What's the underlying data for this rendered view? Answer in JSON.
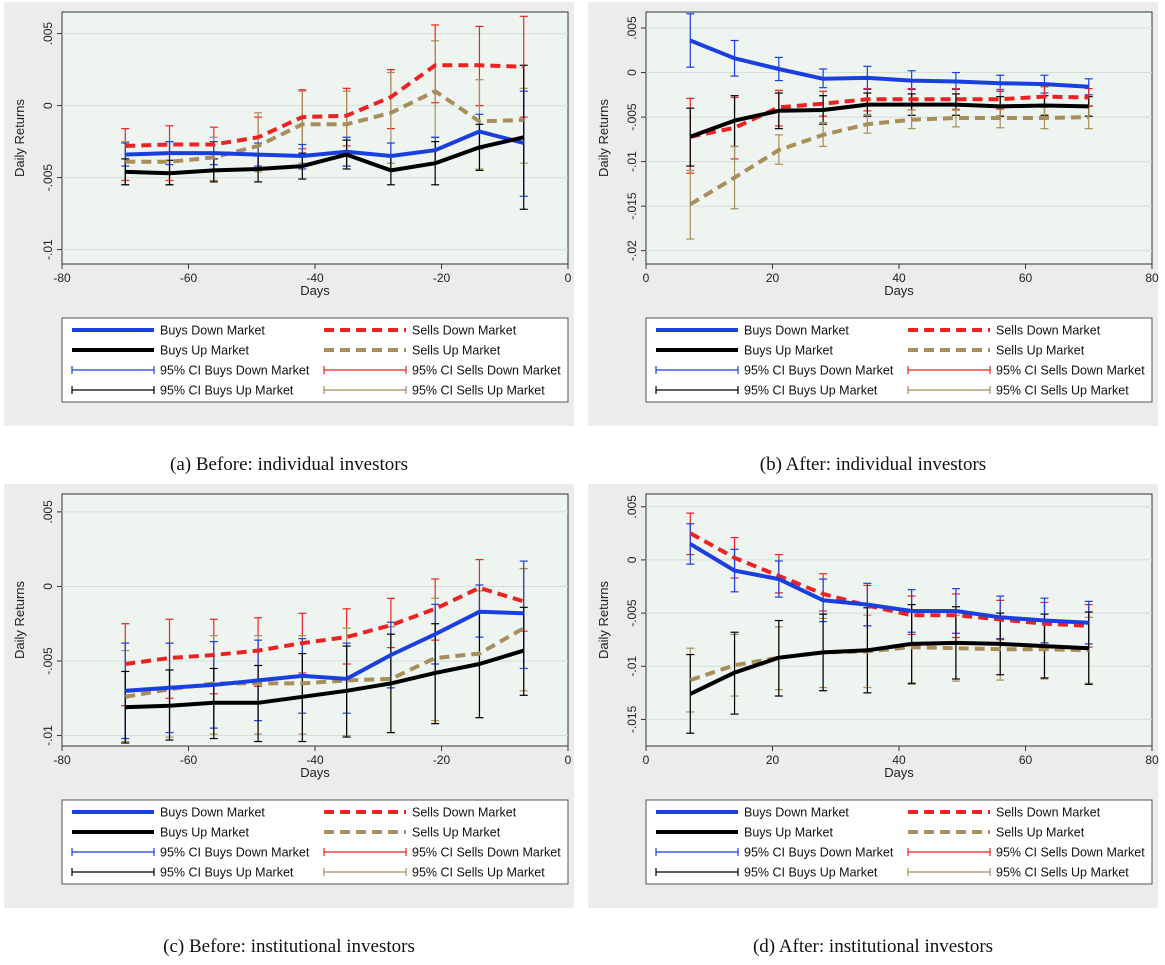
{
  "chart_data": [
    {
      "type": "line",
      "caption": "(a) Before: individual investors",
      "xlabel": "Days",
      "ylabel": "Daily Returns",
      "xlim": [
        -80,
        0
      ],
      "ylim": [
        -0.011,
        0.0065
      ],
      "xticks": [
        -80,
        -60,
        -40,
        -20,
        0
      ],
      "xtick_labels": [
        "-80",
        "-60",
        "-40",
        "-20",
        "0"
      ],
      "yticks": [
        0.005,
        0,
        -0.005,
        -0.01
      ],
      "ytick_labels": [
        ".005",
        "0",
        "-.005",
        "-.01"
      ],
      "x": [
        -70,
        -63,
        -56,
        -49,
        -42,
        -35,
        -28,
        -21,
        -14,
        -7
      ],
      "series": [
        {
          "name": "Sells Down Market",
          "color": "#ee2222",
          "dash": "10 6",
          "width": 4,
          "values": [
            -0.0028,
            -0.0027,
            -0.0027,
            -0.0022,
            -0.0008,
            -0.0007,
            0.0006,
            0.0028,
            0.0028,
            0.0027
          ],
          "ci_low": [
            -0.0052,
            -0.0052,
            -0.0052,
            -0.0044,
            -0.003,
            -0.0028,
            -0.0016,
            0.0002,
            0.0,
            -0.0008
          ],
          "ci_high": [
            -0.0016,
            -0.0014,
            -0.0015,
            -0.0008,
            0.0011,
            0.0012,
            0.0025,
            0.0056,
            0.0055,
            0.0062
          ]
        },
        {
          "name": "Sells Up Market",
          "color": "#a88e5a",
          "dash": "10 6",
          "width": 4,
          "values": [
            -0.0039,
            -0.0039,
            -0.0036,
            -0.0028,
            -0.0013,
            -0.0013,
            -0.0005,
            0.001,
            -0.0011,
            -0.001
          ],
          "ci_low": [
            -0.0055,
            -0.0055,
            -0.0052,
            -0.0046,
            -0.004,
            -0.0042,
            -0.004,
            -0.0022,
            -0.0044,
            -0.004
          ],
          "ci_high": [
            -0.0025,
            -0.0025,
            -0.0022,
            -0.0005,
            0.001,
            0.001,
            0.0023,
            0.0045,
            0.0018,
            0.0012
          ]
        },
        {
          "name": "Buys Down Market",
          "color": "#1a3fe0",
          "dash": "",
          "width": 4,
          "values": [
            -0.0034,
            -0.0033,
            -0.0033,
            -0.0034,
            -0.0035,
            -0.0032,
            -0.0035,
            -0.0031,
            -0.0018,
            -0.0026
          ],
          "ci_low": [
            -0.0042,
            -0.0041,
            -0.0041,
            -0.0042,
            -0.0044,
            -0.0042,
            -0.0045,
            -0.004,
            -0.003,
            -0.0063
          ],
          "ci_high": [
            -0.0026,
            -0.0025,
            -0.0025,
            -0.0026,
            -0.0027,
            -0.0022,
            -0.0026,
            -0.0022,
            -0.0006,
            0.001
          ]
        },
        {
          "name": "Buys Up Market",
          "color": "#000000",
          "dash": "",
          "width": 4,
          "values": [
            -0.0046,
            -0.0047,
            -0.0045,
            -0.0044,
            -0.0042,
            -0.0034,
            -0.0045,
            -0.004,
            -0.0029,
            -0.0022
          ],
          "ci_low": [
            -0.0055,
            -0.0055,
            -0.0053,
            -0.0053,
            -0.0051,
            -0.0044,
            -0.0055,
            -0.0055,
            -0.0045,
            -0.0072
          ],
          "ci_high": [
            -0.0037,
            -0.0038,
            -0.0037,
            -0.0035,
            -0.0033,
            -0.0024,
            -0.0035,
            -0.0025,
            -0.0013,
            0.0028
          ]
        }
      ]
    },
    {
      "type": "line",
      "caption": "(b) After: individual investors",
      "xlabel": "Days",
      "ylabel": "Daily Returns",
      "xlim": [
        0,
        80
      ],
      "ylim": [
        -0.0215,
        0.0068
      ],
      "xticks": [
        0,
        20,
        40,
        60,
        80
      ],
      "xtick_labels": [
        "0",
        "20",
        "40",
        "60",
        "80"
      ],
      "yticks": [
        0.005,
        0,
        -0.005,
        -0.01,
        -0.015,
        -0.02
      ],
      "ytick_labels": [
        ".005",
        "0",
        "-.005",
        "-.01",
        "-.015",
        "-.02"
      ],
      "x": [
        7,
        14,
        21,
        28,
        35,
        42,
        49,
        56,
        63,
        70
      ],
      "series": [
        {
          "name": "Buys Down Market",
          "color": "#1a3fe0",
          "dash": "",
          "width": 4,
          "values": [
            0.0036,
            0.0016,
            0.0004,
            -0.0007,
            -0.0006,
            -0.0009,
            -0.001,
            -0.0012,
            -0.0013,
            -0.0016
          ],
          "ci_low": [
            0.0006,
            -0.0004,
            -0.0009,
            -0.0017,
            -0.0019,
            -0.0019,
            -0.0019,
            -0.0021,
            -0.0023,
            -0.0025
          ],
          "ci_high": [
            0.0066,
            0.0036,
            0.0017,
            0.0004,
            0.0007,
            0.0002,
            0.0,
            -0.0003,
            -0.0003,
            -0.0007
          ]
        },
        {
          "name": "Sells Down Market",
          "color": "#ee2222",
          "dash": "10 6",
          "width": 4,
          "values": [
            -0.0072,
            -0.0062,
            -0.0039,
            -0.0035,
            -0.003,
            -0.003,
            -0.003,
            -0.003,
            -0.0027,
            -0.0028
          ],
          "ci_low": [
            -0.0113,
            -0.0097,
            -0.006,
            -0.0049,
            -0.0043,
            -0.0042,
            -0.0042,
            -0.0041,
            -0.0038,
            -0.0038
          ],
          "ci_high": [
            -0.0029,
            -0.0028,
            -0.002,
            -0.0021,
            -0.0018,
            -0.0018,
            -0.0018,
            -0.0019,
            -0.0016,
            -0.0018
          ]
        },
        {
          "name": "Buys Up Market",
          "color": "#000000",
          "dash": "",
          "width": 4,
          "values": [
            -0.0072,
            -0.0054,
            -0.0043,
            -0.0042,
            -0.0036,
            -0.0036,
            -0.0036,
            -0.0038,
            -0.0037,
            -0.0038
          ],
          "ci_low": [
            -0.0105,
            -0.0083,
            -0.0063,
            -0.0058,
            -0.0049,
            -0.0048,
            -0.0048,
            -0.0049,
            -0.0048,
            -0.0049
          ],
          "ci_high": [
            -0.004,
            -0.0026,
            -0.0023,
            -0.0026,
            -0.0023,
            -0.0024,
            -0.0024,
            -0.0027,
            -0.0026,
            -0.0027
          ]
        },
        {
          "name": "Sells Up Market",
          "color": "#a88e5a",
          "dash": "10 6",
          "width": 4,
          "values": [
            -0.0148,
            -0.0118,
            -0.0087,
            -0.007,
            -0.0058,
            -0.0053,
            -0.0051,
            -0.0051,
            -0.0051,
            -0.005
          ],
          "ci_low": [
            -0.0187,
            -0.0153,
            -0.0103,
            -0.0083,
            -0.0068,
            -0.0063,
            -0.0061,
            -0.0062,
            -0.0063,
            -0.0063
          ],
          "ci_high": [
            -0.011,
            -0.0083,
            -0.007,
            -0.0056,
            -0.0047,
            -0.0042,
            -0.0041,
            -0.004,
            -0.0039,
            -0.0037
          ]
        }
      ]
    },
    {
      "type": "line",
      "caption": "(c) Before: institutional investors",
      "xlabel": "Days",
      "ylabel": "Daily Returns",
      "xlim": [
        -80,
        0
      ],
      "ylim": [
        -0.0107,
        0.0062
      ],
      "xticks": [
        -80,
        -60,
        -40,
        -20,
        0
      ],
      "xtick_labels": [
        "-80",
        "-60",
        "-40",
        "-20",
        "0"
      ],
      "yticks": [
        0.005,
        0,
        -0.005,
        -0.01
      ],
      "ytick_labels": [
        ".005",
        "0",
        "-.005",
        "-.01"
      ],
      "x": [
        -70,
        -63,
        -56,
        -49,
        -42,
        -35,
        -28,
        -21,
        -14,
        -7
      ],
      "series": [
        {
          "name": "Sells Down Market",
          "color": "#ee2222",
          "dash": "10 6",
          "width": 4,
          "values": [
            -0.0052,
            -0.0048,
            -0.0046,
            -0.0043,
            -0.0038,
            -0.0034,
            -0.0026,
            -0.0015,
            -0.0001,
            -0.001
          ],
          "ci_low": [
            -0.008,
            -0.0075,
            -0.0072,
            -0.0067,
            -0.0058,
            -0.0052,
            -0.0041,
            -0.0036,
            -0.0018,
            -0.003
          ],
          "ci_high": [
            -0.0025,
            -0.0022,
            -0.0022,
            -0.0021,
            -0.0018,
            -0.0015,
            -0.0008,
            0.0005,
            0.0018,
            0.0012
          ]
        },
        {
          "name": "Sells Up Market",
          "color": "#a88e5a",
          "dash": "10 6",
          "width": 4,
          "values": [
            -0.0074,
            -0.0069,
            -0.0065,
            -0.0065,
            -0.0065,
            -0.0063,
            -0.0062,
            -0.0048,
            -0.0045,
            -0.0028
          ],
          "ci_low": [
            -0.0104,
            -0.0101,
            -0.0099,
            -0.0099,
            -0.0099,
            -0.01,
            -0.0098,
            -0.009,
            -0.0088,
            -0.007
          ],
          "ci_high": [
            -0.0043,
            -0.0038,
            -0.0033,
            -0.0033,
            -0.0033,
            -0.0028,
            -0.0027,
            -0.0008,
            -0.0003,
            0.0012
          ]
        },
        {
          "name": "Buys Down Market",
          "color": "#1a3fe0",
          "dash": "",
          "width": 4,
          "values": [
            -0.007,
            -0.0068,
            -0.0066,
            -0.0063,
            -0.006,
            -0.0062,
            -0.0046,
            -0.0032,
            -0.0017,
            -0.0018
          ],
          "ci_low": [
            -0.0102,
            -0.0098,
            -0.0095,
            -0.009,
            -0.0085,
            -0.0085,
            -0.0068,
            -0.0052,
            -0.0034,
            -0.0055
          ],
          "ci_high": [
            -0.0038,
            -0.0038,
            -0.0037,
            -0.0036,
            -0.0035,
            -0.0038,
            -0.0024,
            -0.0012,
            0.0001,
            0.0017
          ]
        },
        {
          "name": "Buys Up Market",
          "color": "#000000",
          "dash": "",
          "width": 4,
          "values": [
            -0.0081,
            -0.008,
            -0.0078,
            -0.0078,
            -0.0074,
            -0.007,
            -0.0065,
            -0.0058,
            -0.0052,
            -0.0043
          ],
          "ci_low": [
            -0.0105,
            -0.0103,
            -0.0102,
            -0.0104,
            -0.0104,
            -0.0101,
            -0.0098,
            -0.0092,
            -0.0088,
            -0.0073
          ],
          "ci_high": [
            -0.0057,
            -0.0056,
            -0.0055,
            -0.0053,
            -0.0045,
            -0.004,
            -0.0032,
            -0.0025,
            -0.0017,
            -0.0014
          ]
        }
      ]
    },
    {
      "type": "line",
      "caption": "(d) After: institutional investors",
      "xlabel": "Days",
      "ylabel": "Daily Returns",
      "xlim": [
        0,
        80
      ],
      "ylim": [
        -0.0175,
        0.0062
      ],
      "xticks": [
        0,
        20,
        40,
        60,
        80
      ],
      "xtick_labels": [
        "0",
        "20",
        "40",
        "60",
        "80"
      ],
      "yticks": [
        0.005,
        0,
        -0.005,
        -0.01,
        -0.015
      ],
      "ytick_labels": [
        ".005",
        "0",
        "-.005",
        "-.01",
        "-.015"
      ],
      "x": [
        7,
        14,
        21,
        28,
        35,
        42,
        49,
        56,
        63,
        70
      ],
      "series": [
        {
          "name": "Sells Down Market",
          "color": "#ee2222",
          "dash": "10 6",
          "width": 4,
          "values": [
            0.0025,
            0.0002,
            -0.0015,
            -0.0032,
            -0.0043,
            -0.0052,
            -0.0052,
            -0.0056,
            -0.006,
            -0.0062
          ],
          "ci_low": [
            0.0005,
            -0.0017,
            -0.0031,
            -0.0048,
            -0.0062,
            -0.007,
            -0.0073,
            -0.0075,
            -0.0078,
            -0.0082
          ],
          "ci_high": [
            0.0044,
            0.0021,
            0.0005,
            -0.0013,
            -0.0024,
            -0.0034,
            -0.0032,
            -0.0038,
            -0.004,
            -0.0042
          ]
        },
        {
          "name": "Buys Down Market",
          "color": "#1a3fe0",
          "dash": "",
          "width": 4,
          "values": [
            0.0015,
            -0.001,
            -0.0018,
            -0.0038,
            -0.0042,
            -0.0048,
            -0.0048,
            -0.0054,
            -0.0057,
            -0.0059
          ],
          "ci_low": [
            -0.0004,
            -0.003,
            -0.0035,
            -0.0058,
            -0.0062,
            -0.0068,
            -0.0069,
            -0.0074,
            -0.0078,
            -0.0079
          ],
          "ci_high": [
            0.0034,
            0.001,
            -0.0001,
            -0.0018,
            -0.0022,
            -0.0028,
            -0.0027,
            -0.0034,
            -0.0036,
            -0.0039
          ]
        },
        {
          "name": "Sells Up Market",
          "color": "#a88e5a",
          "dash": "10 6",
          "width": 4,
          "values": [
            -0.0113,
            -0.0099,
            -0.0092,
            -0.0087,
            -0.0086,
            -0.0082,
            -0.0083,
            -0.0084,
            -0.0084,
            -0.0085
          ],
          "ci_low": [
            -0.0143,
            -0.0128,
            -0.0122,
            -0.012,
            -0.012,
            -0.0117,
            -0.0114,
            -0.0113,
            -0.0112,
            -0.0116
          ],
          "ci_high": [
            -0.0083,
            -0.007,
            -0.0063,
            -0.0055,
            -0.0052,
            -0.0047,
            -0.0052,
            -0.0055,
            -0.0056,
            -0.0054
          ]
        },
        {
          "name": "Buys Up Market",
          "color": "#000000",
          "dash": "",
          "width": 4,
          "values": [
            -0.0126,
            -0.0106,
            -0.0092,
            -0.0087,
            -0.0085,
            -0.0079,
            -0.0078,
            -0.0079,
            -0.0081,
            -0.0083
          ],
          "ci_low": [
            -0.0163,
            -0.0145,
            -0.0128,
            -0.0123,
            -0.0125,
            -0.0116,
            -0.0112,
            -0.0108,
            -0.0111,
            -0.0117
          ],
          "ci_high": [
            -0.0089,
            -0.0068,
            -0.0057,
            -0.0051,
            -0.0045,
            -0.0042,
            -0.0044,
            -0.005,
            -0.0051,
            -0.0049
          ]
        }
      ]
    }
  ],
  "legend": [
    {
      "label": "Buys Down Market",
      "color": "#1a3fe0",
      "style": "thick"
    },
    {
      "label": "Sells Down Market",
      "color": "#ee2222",
      "style": "thick-dash"
    },
    {
      "label": "Buys Up Market",
      "color": "#000000",
      "style": "thick"
    },
    {
      "label": "Sells Up Market",
      "color": "#a88e5a",
      "style": "thick-dash"
    },
    {
      "label": "95% CI Buys Down Market",
      "color": "#1a3fe0",
      "style": "ci"
    },
    {
      "label": "95% CI Sells Down Market",
      "color": "#ee2222",
      "style": "ci"
    },
    {
      "label": "95% CI Buys Up Market",
      "color": "#000000",
      "style": "ci"
    },
    {
      "label": "95% CI Sells Up Market",
      "color": "#a88e5a",
      "style": "ci"
    }
  ],
  "colors": {
    "plot_background": "#eef5f1",
    "frame_background": "#ececec",
    "grid": "#d6ded9"
  }
}
